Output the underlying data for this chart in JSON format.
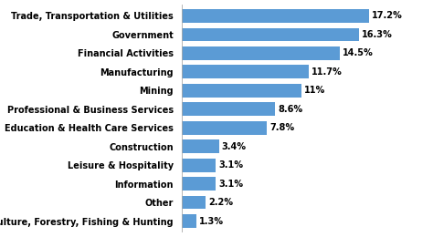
{
  "categories": [
    "Agriculture, Forestry, Fishing & Hunting",
    "Other",
    "Information",
    "Leisure & Hospitality",
    "Construction",
    "Education & Health Care Services",
    "Professional & Business Services",
    "Mining",
    "Manufacturing",
    "Financial Activities",
    "Government",
    "Trade, Transportation & Utilities"
  ],
  "values": [
    1.3,
    2.2,
    3.1,
    3.1,
    3.4,
    7.8,
    8.6,
    11.0,
    11.7,
    14.5,
    16.3,
    17.2
  ],
  "labels": [
    "1.3%",
    "2.2%",
    "3.1%",
    "3.1%",
    "3.4%",
    "7.8%",
    "8.6%",
    "11%",
    "11.7%",
    "14.5%",
    "16.3%",
    "17.2%"
  ],
  "bar_color": "#5b9bd5",
  "background_color": "#ffffff",
  "label_fontsize": 7.0,
  "label_fontweight": "bold",
  "bar_label_fontsize": 7.0,
  "bar_label_fontweight": "bold",
  "xlim": [
    0,
    21.5
  ]
}
